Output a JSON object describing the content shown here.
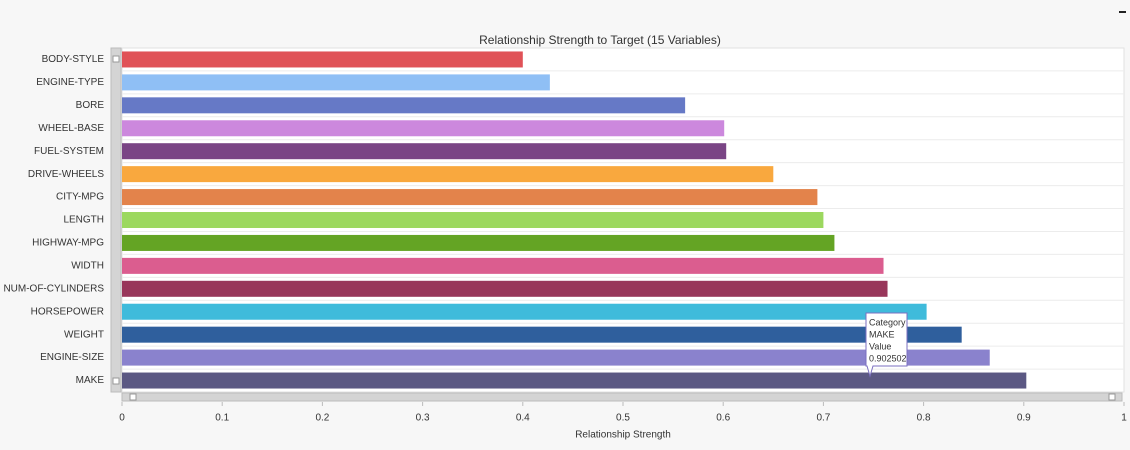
{
  "chart_data": {
    "type": "bar",
    "orientation": "horizontal",
    "title": "Relationship Strength to Target (15 Variables)",
    "x_label": "Relationship Strength",
    "categories": [
      "BODY-STYLE",
      "ENGINE-TYPE",
      "BORE",
      "WHEEL-BASE",
      "FUEL-SYSTEM",
      "DRIVE-WHEELS",
      "CITY-MPG",
      "LENGTH",
      "HIGHWAY-MPG",
      "WIDTH",
      "NUM-OF-CYLINDERS",
      "HORSEPOWER",
      "WEIGHT",
      "ENGINE-SIZE",
      "MAKE"
    ],
    "values": [
      0.4,
      0.427,
      0.562,
      0.601,
      0.603,
      0.65,
      0.694,
      0.7,
      0.711,
      0.76,
      0.764,
      0.803,
      0.838,
      0.866,
      0.902502
    ],
    "colors": [
      "#e05257",
      "#8fbff5",
      "#6679c6",
      "#cc88dd",
      "#7a4585",
      "#f9a83e",
      "#e3834b",
      "#9cd85f",
      "#64a424",
      "#db5d8f",
      "#98365a",
      "#3fbbdb",
      "#2f5f9d",
      "#8a82cd",
      "#5b5883"
    ],
    "xlim": [
      0,
      1
    ],
    "xticks": [
      0,
      0.1,
      0.2,
      0.3,
      0.4,
      0.5,
      0.6,
      0.7,
      0.8,
      0.9,
      1
    ],
    "tooltip": {
      "category_label": "Category",
      "category": "MAKE",
      "value_label": "Value",
      "value": 0.902502
    }
  }
}
